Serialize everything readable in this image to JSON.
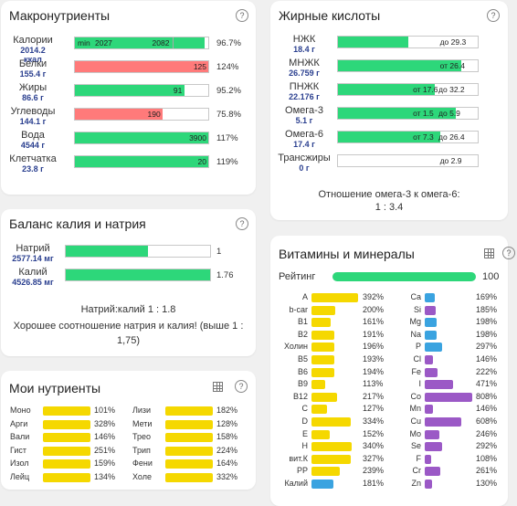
{
  "colors": {
    "green": "#2dd77a",
    "red": "#ff7a7a",
    "yellow": "#f5d800",
    "blue": "#3aa3e0",
    "purple": "#9b59c6",
    "accent": "#2a3f8f"
  },
  "macro": {
    "title": "Макронутриенты",
    "scale_min": "min",
    "scale_min_val": "2027",
    "scale_max_val": "2082",
    "rows": [
      {
        "name": "Калории",
        "value": "2014.2",
        "unit": "ккал",
        "bar_text": "",
        "pct": "96.7%",
        "fill": 0.97,
        "color": "green"
      },
      {
        "name": "Белки",
        "value": "155.4 г",
        "unit": "",
        "bar_text": "125",
        "pct": "124%",
        "fill": 1.0,
        "color": "red"
      },
      {
        "name": "Жиры",
        "value": "86.6 г",
        "unit": "",
        "bar_text": "91",
        "pct": "95.2%",
        "fill": 0.82,
        "color": "green"
      },
      {
        "name": "Углеводы",
        "value": "144.1 г",
        "unit": "",
        "bar_text": "190",
        "pct": "75.8%",
        "fill": 0.66,
        "color": "red"
      },
      {
        "name": "Вода",
        "value": "4544 г",
        "unit": "",
        "bar_text": "3900",
        "pct": "117%",
        "fill": 1.0,
        "color": "green"
      },
      {
        "name": "Клетчатка",
        "value": "23.8 г",
        "unit": "",
        "bar_text": "20",
        "pct": "119%",
        "fill": 1.0,
        "color": "green"
      }
    ]
  },
  "fats": {
    "title": "Жирные кислоты",
    "rows": [
      {
        "name": "НЖК",
        "value": "18.4 г",
        "fill": 0.5,
        "from": "",
        "to": "до 29.3"
      },
      {
        "name": "МНЖК",
        "value": "26.759 г",
        "fill": 0.88,
        "from": "от 26.4",
        "to": ""
      },
      {
        "name": "ПНЖК",
        "value": "22.176 г",
        "fill": 0.69,
        "from": "от 17.6",
        "to": "до 32.2"
      },
      {
        "name": "Омега-3",
        "value": "5.1 г",
        "fill": 0.84,
        "from": "от 1.5",
        "to": "до 5.9"
      },
      {
        "name": "Омега-6",
        "value": "17.4 г",
        "fill": 0.73,
        "from": "от 7.3",
        "to": "до 26.4"
      },
      {
        "name": "Трансжиры",
        "value": "0 г",
        "fill": 0.0,
        "from": "",
        "to": "до 2.9"
      }
    ],
    "ratio_label": "Отношение омега-3 к омега-6:",
    "ratio_value": "1 : 3.4"
  },
  "kna": {
    "title": "Баланс калия и натрия",
    "rows": [
      {
        "name": "Натрий",
        "value": "2577.14 мг",
        "fill": 0.57,
        "pct": "1"
      },
      {
        "name": "Калий",
        "value": "4526.85 мг",
        "fill": 1.0,
        "pct": "1.76"
      }
    ],
    "ratio": "Натрий:калий 1 : 1.8",
    "note": "Хорошее соотношение натрия и калия! (выше 1 : 1,75)"
  },
  "vitamins": {
    "title": "Витамины и минералы",
    "rating_label": "Рейтинг",
    "rating_value": "100",
    "rating_fill": 1.0,
    "left": [
      {
        "n": "A",
        "v": "392%",
        "c": "yellow"
      },
      {
        "n": "b-car",
        "v": "200%",
        "c": "yellow"
      },
      {
        "n": "B1",
        "v": "161%",
        "c": "yellow"
      },
      {
        "n": "B2",
        "v": "191%",
        "c": "yellow"
      },
      {
        "n": "Холин",
        "v": "196%",
        "c": "yellow"
      },
      {
        "n": "B5",
        "v": "193%",
        "c": "yellow"
      },
      {
        "n": "B6",
        "v": "194%",
        "c": "yellow"
      },
      {
        "n": "B9",
        "v": "113%",
        "c": "yellow"
      },
      {
        "n": "B12",
        "v": "217%",
        "c": "yellow"
      },
      {
        "n": "C",
        "v": "127%",
        "c": "yellow"
      },
      {
        "n": "D",
        "v": "334%",
        "c": "yellow"
      },
      {
        "n": "E",
        "v": "152%",
        "c": "yellow"
      },
      {
        "n": "H",
        "v": "340%",
        "c": "yellow"
      },
      {
        "n": "вит.К",
        "v": "327%",
        "c": "yellow"
      },
      {
        "n": "PP",
        "v": "239%",
        "c": "yellow"
      },
      {
        "n": "Калий",
        "v": "181%",
        "c": "blue"
      }
    ],
    "right": [
      {
        "n": "Ca",
        "v": "169%",
        "c": "blue"
      },
      {
        "n": "Si",
        "v": "185%",
        "c": "purple"
      },
      {
        "n": "Mg",
        "v": "198%",
        "c": "blue"
      },
      {
        "n": "Na",
        "v": "198%",
        "c": "blue"
      },
      {
        "n": "P",
        "v": "297%",
        "c": "blue"
      },
      {
        "n": "Cl",
        "v": "146%",
        "c": "purple"
      },
      {
        "n": "Fe",
        "v": "222%",
        "c": "purple"
      },
      {
        "n": "I",
        "v": "471%",
        "c": "purple"
      },
      {
        "n": "Co",
        "v": "808%",
        "c": "purple"
      },
      {
        "n": "Mn",
        "v": "146%",
        "c": "purple"
      },
      {
        "n": "Cu",
        "v": "608%",
        "c": "purple"
      },
      {
        "n": "Mo",
        "v": "246%",
        "c": "purple"
      },
      {
        "n": "Se",
        "v": "292%",
        "c": "purple"
      },
      {
        "n": "F",
        "v": "108%",
        "c": "purple"
      },
      {
        "n": "Cr",
        "v": "261%",
        "c": "purple"
      },
      {
        "n": "Zn",
        "v": "130%",
        "c": "purple"
      }
    ]
  },
  "my": {
    "title": "Мои нутриенты",
    "left": [
      {
        "n": "Моно",
        "v": "101%"
      },
      {
        "n": "Арги",
        "v": "328%"
      },
      {
        "n": "Вали",
        "v": "146%"
      },
      {
        "n": "Гист",
        "v": "251%"
      },
      {
        "n": "Изол",
        "v": "159%"
      },
      {
        "n": "Лейц",
        "v": "134%"
      }
    ],
    "right": [
      {
        "n": "Лизи",
        "v": "182%"
      },
      {
        "n": "Мети",
        "v": "128%"
      },
      {
        "n": "Трео",
        "v": "158%"
      },
      {
        "n": "Трип",
        "v": "224%"
      },
      {
        "n": "Фени",
        "v": "164%"
      },
      {
        "n": "Холе",
        "v": "332%"
      }
    ]
  }
}
